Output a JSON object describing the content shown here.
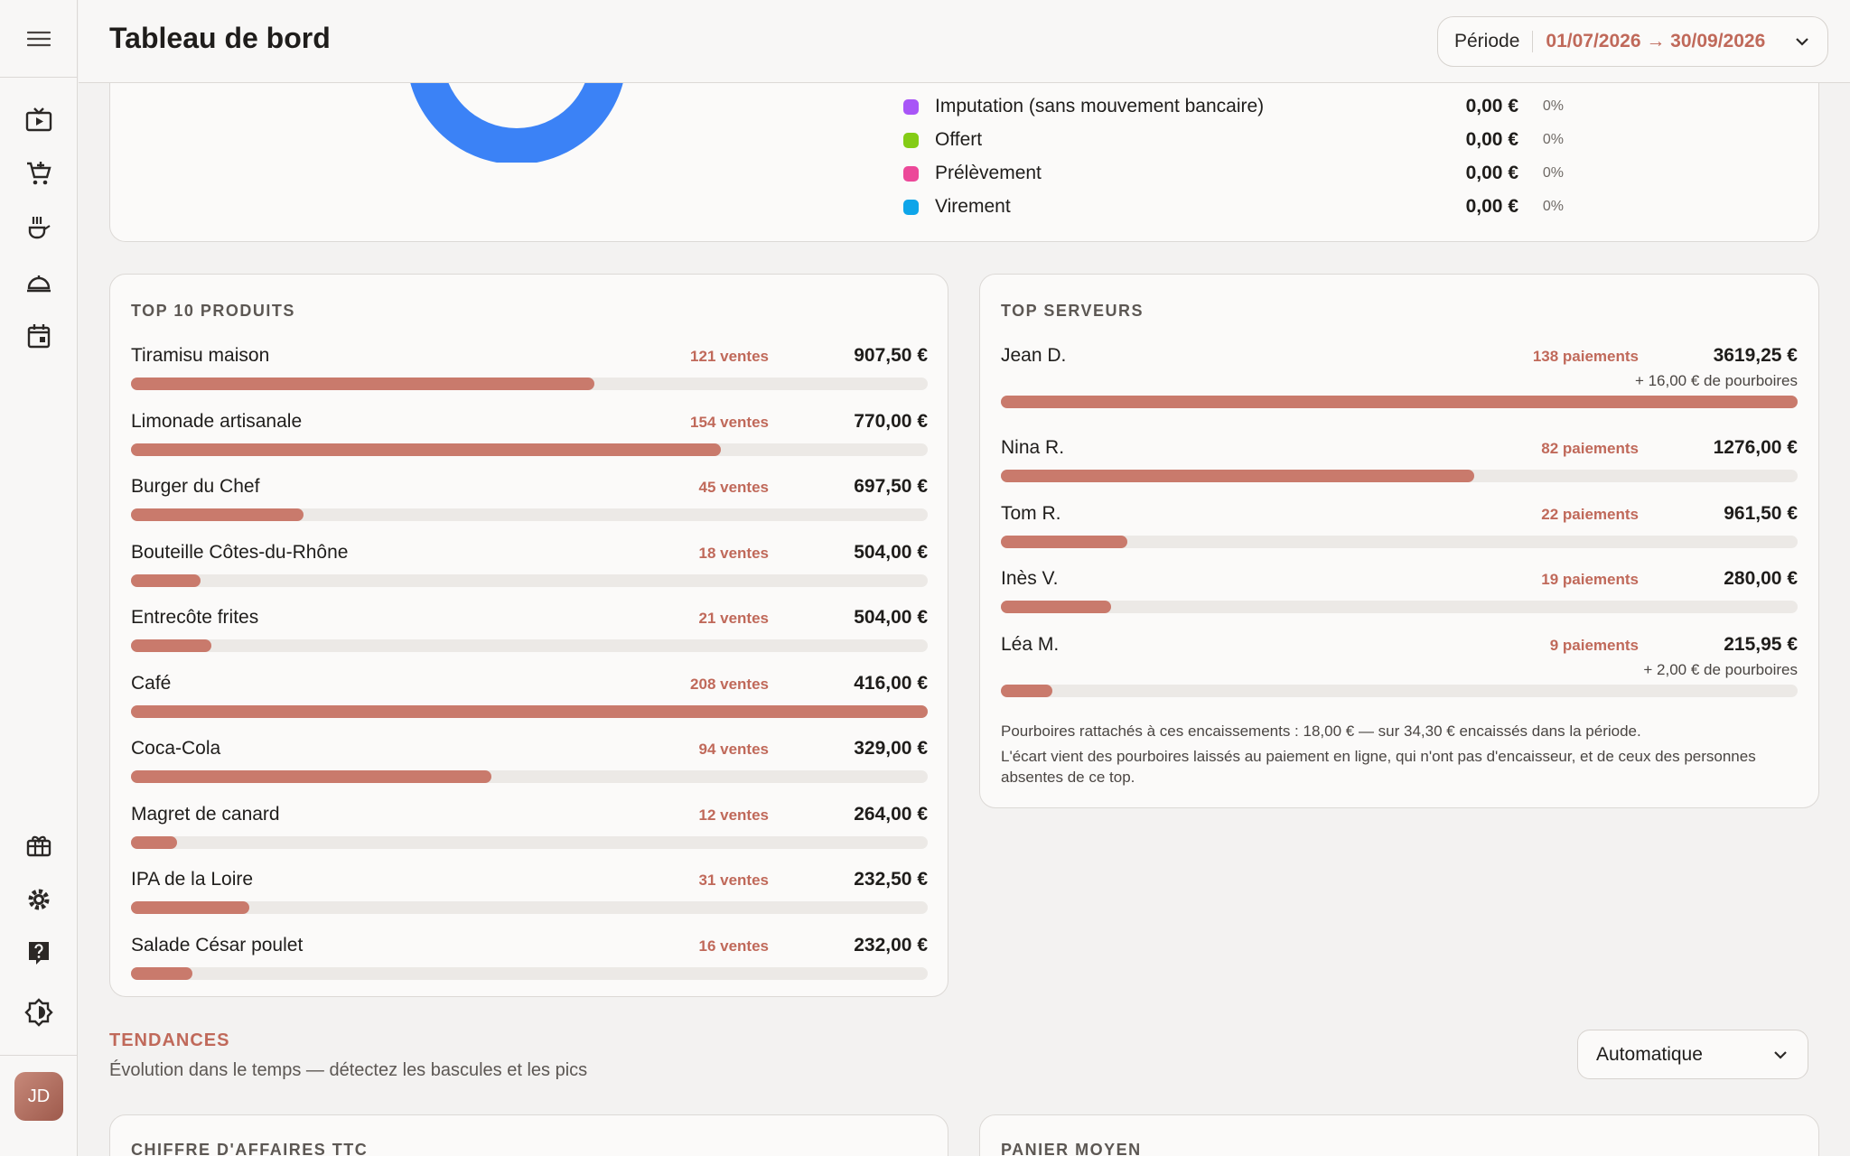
{
  "header": {
    "title": "Tableau de bord",
    "period_label": "Période",
    "period_value": "01/07/2026 → 30/09/2026"
  },
  "sidebar": {
    "icons": [
      "menu-icon",
      "tv-icon",
      "cart-icon",
      "kitchen-icon",
      "service-bell-icon",
      "calendar-icon",
      "gift-icon",
      "gear-icon",
      "help-icon",
      "theme-icon"
    ],
    "avatar": "JD"
  },
  "payment_legend": [
    {
      "name": "Imputation (sans mouvement bancaire)",
      "amount": "0,00 €",
      "pct": "0%",
      "color": "#a855f7"
    },
    {
      "name": "Offert",
      "amount": "0,00 €",
      "pct": "0%",
      "color": "#84cc16"
    },
    {
      "name": "Prélèvement",
      "amount": "0,00 €",
      "pct": "0%",
      "color": "#ec4899"
    },
    {
      "name": "Virement",
      "amount": "0,00 €",
      "pct": "0%",
      "color": "#0ea5e9"
    }
  ],
  "top_products": {
    "title": "TOP 10 PRODUITS",
    "items": [
      {
        "name": "Tiramisu maison",
        "count": "121 ventes",
        "amount": "907,50 €",
        "fraction": 0.582
      },
      {
        "name": "Limonade artisanale",
        "count": "154 ventes",
        "amount": "770,00 €",
        "fraction": 0.74
      },
      {
        "name": "Burger du Chef",
        "count": "45 ventes",
        "amount": "697,50 €",
        "fraction": 0.216
      },
      {
        "name": "Bouteille Côtes-du-Rhône",
        "count": "18 ventes",
        "amount": "504,00 €",
        "fraction": 0.087
      },
      {
        "name": "Entrecôte frites",
        "count": "21 ventes",
        "amount": "504,00 €",
        "fraction": 0.101
      },
      {
        "name": "Café",
        "count": "208 ventes",
        "amount": "416,00 €",
        "fraction": 1.0
      },
      {
        "name": "Coca-Cola",
        "count": "94 ventes",
        "amount": "329,00 €",
        "fraction": 0.452
      },
      {
        "name": "Magret de canard",
        "count": "12 ventes",
        "amount": "264,00 €",
        "fraction": 0.058
      },
      {
        "name": "IPA de la Loire",
        "count": "31 ventes",
        "amount": "232,50 €",
        "fraction": 0.149
      },
      {
        "name": "Salade César poulet",
        "count": "16 ventes",
        "amount": "232,00 €",
        "fraction": 0.077
      }
    ]
  },
  "top_servers": {
    "title": "TOP SERVEURS",
    "items": [
      {
        "name": "Jean D.",
        "count": "138 paiements",
        "amount": "3619,25 €",
        "tips": "+ 16,00 € de pourboires",
        "fraction": 1.0
      },
      {
        "name": "Nina R.",
        "count": "82 paiements",
        "amount": "1276,00 €",
        "tips": "",
        "fraction": 0.594
      },
      {
        "name": "Tom R.",
        "count": "22 paiements",
        "amount": "961,50 €",
        "tips": "",
        "fraction": 0.159
      },
      {
        "name": "Inès V.",
        "count": "19 paiements",
        "amount": "280,00 €",
        "tips": "",
        "fraction": 0.138
      },
      {
        "name": "Léa M.",
        "count": "9 paiements",
        "amount": "215,95 €",
        "tips": "+ 2,00 € de pourboires",
        "fraction": 0.065
      }
    ],
    "note_1": "Pourboires rattachés à ces encaissements : 18,00 € — sur 34,30 € encaissés dans la période.",
    "note_2": "L'écart vient des pourboires laissés au paiement en ligne, qui n'ont pas d'encaisseur, et de ceux des personnes absentes de ce top."
  },
  "trends": {
    "title": "TENDANCES",
    "subtitle": "Évolution dans le temps — détectez les bascules et les pics",
    "mode": "Automatique",
    "card_1_title": "CHIFFRE D'AFFAIRES TTC",
    "card_2_title": "PANIER MOYEN"
  },
  "colors": {
    "accent": "#c0695a",
    "bar": "#c97a6c",
    "donut": "#3b82f6"
  }
}
